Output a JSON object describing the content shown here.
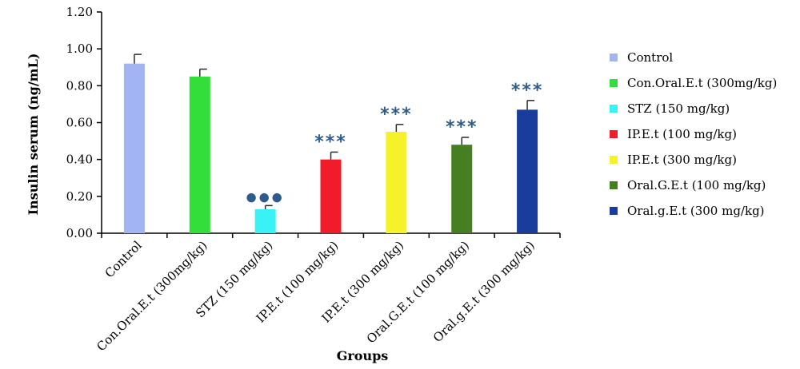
{
  "chart_data": {
    "type": "bar",
    "title": "",
    "xlabel": "Groups",
    "ylabel": "Insulin serum (ng/mL)",
    "ylim": [
      0,
      1.2
    ],
    "yticks": [
      "0.00",
      "0.20",
      "0.40",
      "0.60",
      "0.80",
      "1.00",
      "1.20"
    ],
    "grid": false,
    "legend_position": "right",
    "categories": [
      "Control",
      "Con.Oral.E.t (300mg/kg)",
      "STZ (150 mg/kg)",
      "IP.E.t (100 mg/kg)",
      "IP.E.t (300 mg/kg)",
      "Oral.G.E.t (100 mg/kg)",
      "Oral.g.E.t (300 mg/kg)"
    ],
    "values": [
      0.92,
      0.85,
      0.13,
      0.4,
      0.55,
      0.48,
      0.67
    ],
    "errors": [
      0.05,
      0.04,
      0.02,
      0.04,
      0.04,
      0.04,
      0.05
    ],
    "colors": [
      "#a3b4f3",
      "#33dd3a",
      "#39f2f5",
      "#f01c2a",
      "#f5f229",
      "#457f22",
      "#1a3c9c"
    ],
    "annotations": [
      "",
      "",
      "●●●",
      "***",
      "***",
      "***",
      "***"
    ],
    "annotation_color": "#2f5b8a",
    "legend": [
      "Control",
      "Con.Oral.E.t (300mg/kg)",
      "STZ (150 mg/kg)",
      "IP.E.t (100 mg/kg)",
      "IP.E.t (300 mg/kg)",
      "Oral.G.E.t (100 mg/kg)",
      "Oral.g.E.t (300 mg/kg)"
    ]
  }
}
